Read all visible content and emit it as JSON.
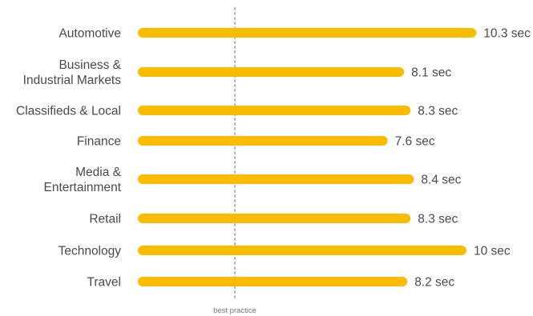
{
  "chart_data": {
    "type": "bar",
    "orientation": "horizontal",
    "categories": [
      [
        "Automotive"
      ],
      [
        "Business &",
        "Industrial Markets"
      ],
      [
        "Classifieds & Local"
      ],
      [
        "Finance"
      ],
      [
        "Media &",
        "Entertainment"
      ],
      [
        "Retail"
      ],
      [
        "Technology"
      ],
      [
        "Travel"
      ]
    ],
    "values": [
      10.3,
      8.1,
      8.3,
      7.6,
      8.4,
      8.3,
      10.0,
      8.2
    ],
    "value_labels": [
      "10.3 sec",
      "8.1 sec",
      "8.3 sec",
      "7.6 sec",
      "8.4 sec",
      "8.3 sec",
      "10 sec",
      "8.2 sec"
    ],
    "unit": "sec",
    "reference_line": {
      "value": 3,
      "label": "best practice",
      "style": "dotted"
    },
    "xlim": [
      0,
      10.3
    ],
    "grid": false,
    "axes_visible": false,
    "bar_color": "#F9BC00",
    "reference_line_color": "#B5B5B5",
    "text_color": "#4A4A4A"
  }
}
